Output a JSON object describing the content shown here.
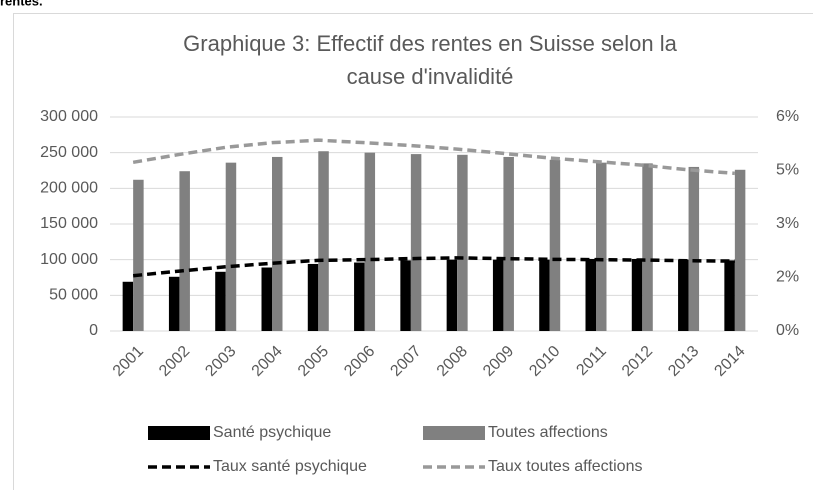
{
  "header_text": "rentes.",
  "chart_data": {
    "type": "combo",
    "title": [
      "Graphique 3: Effectif des rentes en Suisse selon la",
      "cause d'invalidité"
    ],
    "categories": [
      "2001",
      "2002",
      "2003",
      "2004",
      "2005",
      "2006",
      "2007",
      "2008",
      "2009",
      "2010",
      "2011",
      "2012",
      "2013",
      "2014"
    ],
    "series": [
      {
        "name": "Santé psychique",
        "type": "bar",
        "color": "#000000",
        "values": [
          69000,
          76000,
          83000,
          89000,
          94000,
          96000,
          99000,
          100000,
          100000,
          100000,
          101000,
          101000,
          100000,
          99000
        ]
      },
      {
        "name": "Toutes affections",
        "type": "bar",
        "color": "#808080",
        "values": [
          212000,
          224000,
          236000,
          244000,
          252000,
          250000,
          248000,
          247000,
          244000,
          240000,
          236000,
          235000,
          230000,
          226000
        ]
      },
      {
        "name": "Taux santé psychique",
        "type": "line",
        "axis": "y2",
        "dashed": true,
        "color": "#000000",
        "values": [
          1.55,
          1.68,
          1.8,
          1.9,
          1.98,
          2.0,
          2.03,
          2.05,
          2.03,
          2.01,
          2.0,
          1.99,
          1.97,
          1.96
        ]
      },
      {
        "name": "Taux toutes affections",
        "type": "line",
        "axis": "y2",
        "dashed": true,
        "color": "#999999",
        "values": [
          4.73,
          4.95,
          5.15,
          5.28,
          5.35,
          5.28,
          5.2,
          5.1,
          4.98,
          4.85,
          4.75,
          4.65,
          4.52,
          4.42
        ]
      }
    ],
    "ylim": [
      0,
      300000
    ],
    "yticks": [
      {
        "value": 0,
        "label": "0"
      },
      {
        "value": 50000,
        "label": "50 000"
      },
      {
        "value": 100000,
        "label": "100 000"
      },
      {
        "value": 150000,
        "label": "150 000"
      },
      {
        "value": 200000,
        "label": "200 000"
      },
      {
        "value": 250000,
        "label": "250 000"
      },
      {
        "value": 300000,
        "label": "300 000"
      }
    ],
    "y2lim": [
      0,
      6
    ],
    "y2ticks": [
      {
        "value": 0,
        "label": "0%"
      },
      {
        "value": 1.5,
        "label": "2%"
      },
      {
        "value": 3,
        "label": "3%"
      },
      {
        "value": 4.5,
        "label": "5%"
      },
      {
        "value": 6,
        "label": "6%"
      }
    ],
    "grid": true,
    "legend": "bottom"
  }
}
